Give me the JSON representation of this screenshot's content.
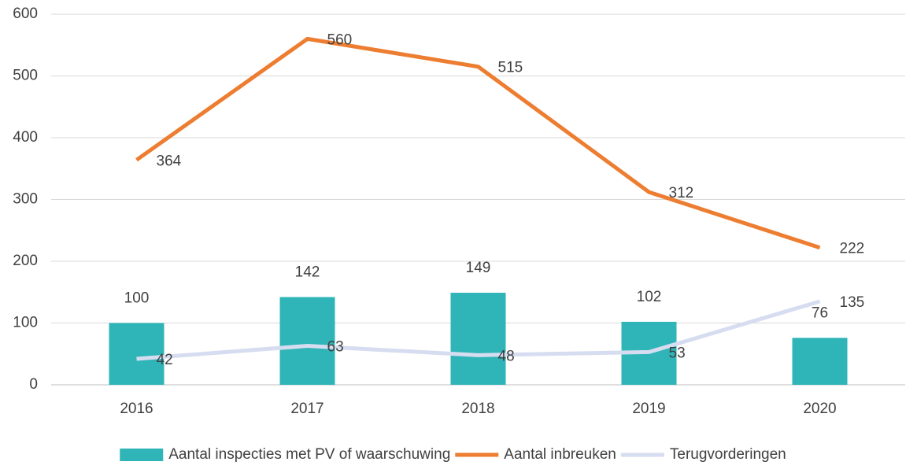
{
  "chart_data": {
    "type": "combo",
    "categories": [
      "2016",
      "2017",
      "2018",
      "2019",
      "2020"
    ],
    "series": [
      {
        "name": "Aantal inspecties met PV of waarschuwing",
        "type": "bar",
        "color": "#2fb5b8",
        "values": [
          100,
          142,
          149,
          102,
          76
        ]
      },
      {
        "name": "Aantal inbreuken",
        "type": "line",
        "color": "#ed7d31",
        "values": [
          364,
          560,
          515,
          312,
          222
        ]
      },
      {
        "name": "Terugvorderingen",
        "type": "line",
        "color": "#d7ddf0",
        "values": [
          42,
          63,
          48,
          53,
          135
        ]
      }
    ],
    "ylim": [
      0,
      600
    ],
    "yticks": [
      0,
      100,
      200,
      300,
      400,
      500,
      600
    ],
    "grid": true,
    "legend": "bottom"
  }
}
